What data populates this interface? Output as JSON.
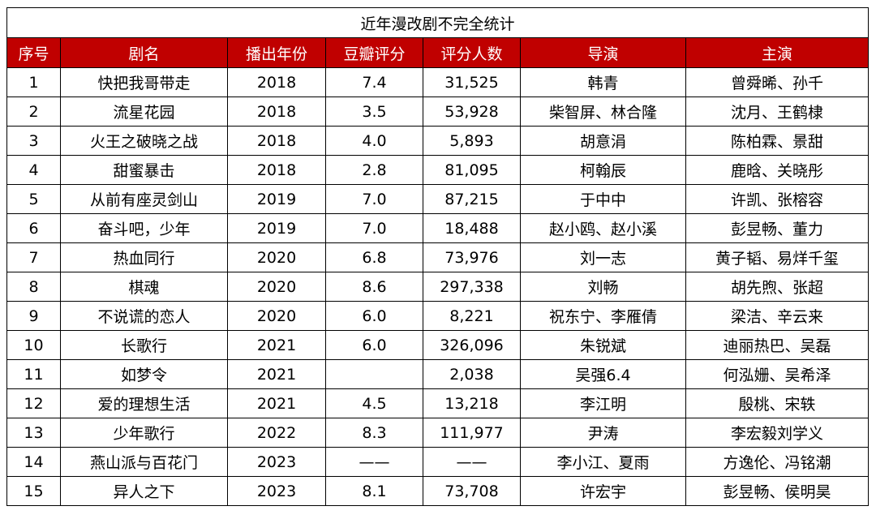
{
  "colors": {
    "header_bg": "#c00000",
    "header_text": "#ffffff",
    "border": "#000000"
  },
  "table": {
    "title": "近年漫改剧不完全统计",
    "headers": [
      "序号",
      "剧名",
      "播出年份",
      "豆瓣评分",
      "评分人数",
      "导演",
      "主演"
    ],
    "rows": [
      [
        "1",
        "快把我哥带走",
        "2018",
        "7.4",
        "31,525",
        "韩青",
        "曾舜晞、孙千"
      ],
      [
        "2",
        "流星花园",
        "2018",
        "3.5",
        "53,928",
        "柴智屏、林合隆",
        "沈月、王鹤棣"
      ],
      [
        "3",
        "火王之破晓之战",
        "2018",
        "4.0",
        "5,893",
        "胡意涓",
        "陈柏霖、景甜"
      ],
      [
        "4",
        "甜蜜暴击",
        "2018",
        "2.8",
        "81,095",
        "柯翰辰",
        "鹿晗、关晓彤"
      ],
      [
        "5",
        "从前有座灵剑山",
        "2019",
        "7.0",
        "87,215",
        "于中中",
        "许凯、张榕容"
      ],
      [
        "6",
        "奋斗吧，少年",
        "2019",
        "7.0",
        "18,488",
        "赵小鸥、赵小溪",
        "彭昱畅、董力"
      ],
      [
        "7",
        "热血同行",
        "2020",
        "6.8",
        "73,976",
        "刘一志",
        "黄子韬、易烊千玺"
      ],
      [
        "8",
        "棋魂",
        "2020",
        "8.6",
        "297,338",
        "刘畅",
        "胡先煦、张超"
      ],
      [
        "9",
        "不说谎的恋人",
        "2020",
        "6.0",
        "8,221",
        "祝东宁、李雁倩",
        "梁洁、辛云来"
      ],
      [
        "10",
        "长歌行",
        "2021",
        "6.0",
        "326,096",
        "朱锐斌",
        "迪丽热巴、吴磊"
      ],
      [
        "11",
        "如梦令",
        "2021",
        "",
        "2,038",
        "吴强6.4",
        "何泓姗、吴希泽"
      ],
      [
        "12",
        "爱的理想生活",
        "2021",
        "4.5",
        "13,218",
        "李江明",
        "殷桃、宋轶"
      ],
      [
        "13",
        "少年歌行",
        "2022",
        "8.3",
        "111,977",
        "尹涛",
        "李宏毅刘学义"
      ],
      [
        "14",
        "燕山派与百花门",
        "2023",
        "——",
        "——",
        "李小江、夏雨",
        "方逸伦、冯铭潮"
      ],
      [
        "15",
        "异人之下",
        "2023",
        "8.1",
        "73,708",
        "许宏宇",
        "彭昱畅、侯明昊"
      ]
    ]
  }
}
